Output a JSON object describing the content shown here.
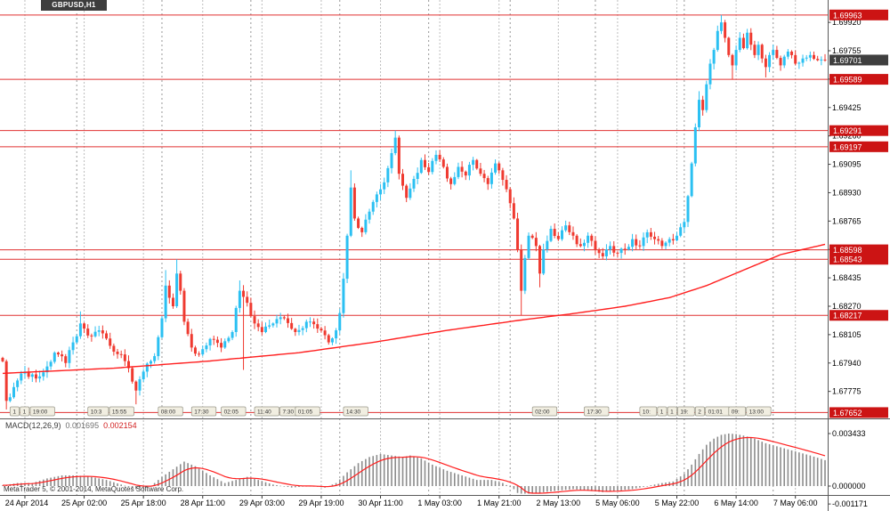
{
  "window": {
    "symbol_label": "GBPUSD,H1"
  },
  "indicator": {
    "label": "MACD(12,26,9)",
    "value_main": "0.001695",
    "value_signal": "0.002154"
  },
  "footer": {
    "copyright": "MetaTrader 5, © 2001-2014, MetaQuotes Software Corp."
  },
  "colors": {
    "bull": "#2bc0f2",
    "bear": "#ef3a30",
    "ma": "#ff1e1e",
    "level_line": "#e03030",
    "level_badge_bg": "#cc1414",
    "current_badge_bg": "#3f3f3f",
    "histogram": "#8c8c8c",
    "signal": "#ff1e1e",
    "grid": "#bdbdbd",
    "separator": "#5a5a5a",
    "axis_text": "#000000",
    "flag_bg": "#f1eee1",
    "flag_border": "#99988a"
  },
  "chart_data": [
    {
      "type": "candlestick",
      "title": "GBPUSD,H1",
      "symbol": "GBPUSD",
      "timeframe": "H1",
      "x_count": 223,
      "ylim": [
        1.67618,
        1.7005
      ],
      "current_price": {
        "label": "1.69701",
        "value": 1.69701
      },
      "price_ticks": [
        "1.69920",
        "1.69755",
        "1.69590",
        "1.69425",
        "1.69260",
        "1.69095",
        "1.68930",
        "1.68765",
        "1.68600",
        "1.68435",
        "1.68270",
        "1.68105",
        "1.67940",
        "1.67775"
      ],
      "levels": [
        {
          "label": "1.69963",
          "value": 1.69963
        },
        {
          "label": "1.69589",
          "value": 1.69589
        },
        {
          "label": "1.69291",
          "value": 1.69291
        },
        {
          "label": "1.69197",
          "value": 1.69197
        },
        {
          "label": "1.68598",
          "value": 1.68598
        },
        {
          "label": "1.68543",
          "value": 1.68543
        },
        {
          "label": "1.68217",
          "value": 1.68217
        },
        {
          "label": "1.67652",
          "value": 1.67652
        }
      ],
      "time_ticks": {
        "start_index": 6,
        "step": 16,
        "labels": [
          "24 Apr 2014",
          "25 Apr 02:00",
          "25 Apr 18:00",
          "28 Apr 11:00",
          "29 Apr 03:00",
          "29 Apr 19:00",
          "30 Apr 11:00",
          "1 May 03:00",
          "1 May 21:00",
          "2 May 13:00",
          "5 May 06:00",
          "5 May 22:00",
          "6 May 14:00",
          "7 May 06:00"
        ]
      },
      "day_separator_indices": [
        20,
        43,
        67,
        91,
        115,
        137,
        160,
        184,
        208
      ],
      "close_path": [
        [
          0,
          1.6795
        ],
        [
          1,
          1.6772
        ],
        [
          3,
          1.678
        ],
        [
          6,
          1.6789
        ],
        [
          9,
          1.6785
        ],
        [
          12,
          1.6792
        ],
        [
          14,
          1.68
        ],
        [
          17,
          1.6794
        ],
        [
          19,
          1.6806
        ],
        [
          21,
          1.6817
        ],
        [
          23,
          1.681
        ],
        [
          26,
          1.6813
        ],
        [
          29,
          1.6804
        ],
        [
          32,
          1.6799
        ],
        [
          34,
          1.6791
        ],
        [
          36,
          1.6778
        ],
        [
          38,
          1.6789
        ],
        [
          41,
          1.6798
        ],
        [
          43,
          1.682
        ],
        [
          44,
          1.6839
        ],
        [
          46,
          1.6827
        ],
        [
          47,
          1.6846
        ],
        [
          48,
          1.6836
        ],
        [
          49,
          1.6818
        ],
        [
          51,
          1.6803
        ],
        [
          53,
          1.6799
        ],
        [
          56,
          1.6808
        ],
        [
          59,
          1.6803
        ],
        [
          62,
          1.6812
        ],
        [
          63,
          1.6826
        ],
        [
          64,
          1.6836
        ],
        [
          66,
          1.6829
        ],
        [
          68,
          1.6817
        ],
        [
          70,
          1.6812
        ],
        [
          73,
          1.6817
        ],
        [
          76,
          1.682
        ],
        [
          79,
          1.6812
        ],
        [
          82,
          1.6818
        ],
        [
          85,
          1.6814
        ],
        [
          88,
          1.6806
        ],
        [
          90,
          1.6813
        ],
        [
          91,
          1.6823
        ],
        [
          92,
          1.6843
        ],
        [
          93,
          1.6868
        ],
        [
          94,
          1.6896
        ],
        [
          95,
          1.6878
        ],
        [
          97,
          1.687
        ],
        [
          99,
          1.6882
        ],
        [
          101,
          1.6892
        ],
        [
          103,
          1.6899
        ],
        [
          105,
          1.6916
        ],
        [
          106,
          1.6925
        ],
        [
          107,
          1.6904
        ],
        [
          109,
          1.689
        ],
        [
          111,
          1.6901
        ],
        [
          113,
          1.6912
        ],
        [
          115,
          1.6905
        ],
        [
          117,
          1.6915
        ],
        [
          119,
          1.6908
        ],
        [
          121,
          1.6898
        ],
        [
          123,
          1.6908
        ],
        [
          125,
          1.6903
        ],
        [
          127,
          1.6912
        ],
        [
          129,
          1.6904
        ],
        [
          131,
          1.6898
        ],
        [
          133,
          1.691
        ],
        [
          134,
          1.6906
        ],
        [
          136,
          1.6895
        ],
        [
          138,
          1.6878
        ],
        [
          139,
          1.686
        ],
        [
          140,
          1.6836
        ],
        [
          141,
          1.6855
        ],
        [
          142,
          1.6868
        ],
        [
          144,
          1.6862
        ],
        [
          145,
          1.6846
        ],
        [
          146,
          1.686
        ],
        [
          148,
          1.6872
        ],
        [
          150,
          1.6866
        ],
        [
          152,
          1.6874
        ],
        [
          154,
          1.6868
        ],
        [
          156,
          1.6862
        ],
        [
          158,
          1.6868
        ],
        [
          160,
          1.686
        ],
        [
          162,
          1.6856
        ],
        [
          164,
          1.6862
        ],
        [
          166,
          1.6858
        ],
        [
          168,
          1.686
        ],
        [
          170,
          1.6866
        ],
        [
          172,
          1.6862
        ],
        [
          174,
          1.687
        ],
        [
          176,
          1.6866
        ],
        [
          178,
          1.6862
        ],
        [
          180,
          1.6866
        ],
        [
          182,
          1.6868
        ],
        [
          184,
          1.6876
        ],
        [
          185,
          1.6891
        ],
        [
          186,
          1.691
        ],
        [
          187,
          1.6931
        ],
        [
          188,
          1.6947
        ],
        [
          189,
          1.6941
        ],
        [
          190,
          1.6956
        ],
        [
          191,
          1.6968
        ],
        [
          192,
          1.6976
        ],
        [
          193,
          1.6987
        ],
        [
          194,
          1.6992
        ],
        [
          195,
          1.6983
        ],
        [
          196,
          1.6973
        ],
        [
          197,
          1.6967
        ],
        [
          198,
          1.6976
        ],
        [
          199,
          1.6983
        ],
        [
          200,
          1.6977
        ],
        [
          201,
          1.6986
        ],
        [
          202,
          1.6979
        ],
        [
          203,
          1.6973
        ],
        [
          204,
          1.6979
        ],
        [
          205,
          1.6971
        ],
        [
          206,
          1.6966
        ],
        [
          207,
          1.6973
        ],
        [
          208,
          1.6976
        ],
        [
          210,
          1.6967
        ],
        [
          212,
          1.6975
        ],
        [
          214,
          1.6968
        ],
        [
          216,
          1.6971
        ],
        [
          218,
          1.6973
        ],
        [
          220,
          1.697
        ],
        [
          222,
          1.69701
        ]
      ],
      "wick_extremes": {
        "1": {
          "low": 1.6767
        },
        "21": {
          "high": 1.6824
        },
        "36": {
          "low": 1.677
        },
        "44": {
          "high": 1.6848
        },
        "47": {
          "high": 1.68543
        },
        "64": {
          "high": 1.6842
        },
        "65": {
          "low": 1.679
        },
        "94": {
          "high": 1.6906
        },
        "106": {
          "high": 1.69291
        },
        "140": {
          "low": 1.68217
        },
        "145": {
          "low": 1.6838
        },
        "188": {
          "high": 1.6952
        },
        "194": {
          "high": 1.69963
        },
        "197": {
          "low": 1.69589
        },
        "206": {
          "low": 1.696
        }
      },
      "ma_path": [
        [
          0,
          1.6788
        ],
        [
          30,
          1.6791
        ],
        [
          55,
          1.6795
        ],
        [
          80,
          1.68
        ],
        [
          100,
          1.6806
        ],
        [
          120,
          1.6813
        ],
        [
          140,
          1.6819
        ],
        [
          155,
          1.6823
        ],
        [
          168,
          1.6827
        ],
        [
          180,
          1.6832
        ],
        [
          190,
          1.6839
        ],
        [
          200,
          1.6848
        ],
        [
          210,
          1.6857
        ],
        [
          222,
          1.6863
        ]
      ],
      "event_flags": [
        {
          "i": 2,
          "labels": [
            "1",
            "1",
            "19:00"
          ]
        },
        {
          "i": 23,
          "labels": [
            "10:3",
            "15:55"
          ]
        },
        {
          "i": 42,
          "labels": [
            "08:00"
          ]
        },
        {
          "i": 51,
          "labels": [
            "17:30"
          ]
        },
        {
          "i": 59,
          "labels": [
            "02:05"
          ]
        },
        {
          "i": 68,
          "labels": [
            "11:40",
            "7:30"
          ]
        },
        {
          "i": 79,
          "labels": [
            "01:05"
          ]
        },
        {
          "i": 92,
          "labels": [
            "14:30"
          ]
        },
        {
          "i": 143,
          "labels": [
            "02:00"
          ]
        },
        {
          "i": 157,
          "labels": [
            "17:30"
          ]
        },
        {
          "i": 172,
          "labels": [
            "10:",
            "1",
            "1",
            "19:",
            "2",
            "01:01"
          ]
        },
        {
          "i": 196,
          "labels": [
            "09:",
            "13:00"
          ]
        }
      ]
    },
    {
      "type": "bar",
      "title": "MACD(12,26,9)",
      "signal_rule": "EMA9 of MACD line",
      "axis_labels": [
        {
          "label": "0.003433",
          "value": 0.003433
        },
        {
          "label": "0.000000",
          "value": 0.0
        },
        {
          "label": "-0.001171",
          "value": -0.001171
        }
      ],
      "current": {
        "macd": 0.001695,
        "signal": 0.002154
      },
      "values_path": [
        [
          0,
          5e-05
        ],
        [
          4,
          0.0002
        ],
        [
          8,
          0.0002
        ],
        [
          12,
          0.0005
        ],
        [
          16,
          0.0007
        ],
        [
          20,
          0.0007
        ],
        [
          24,
          0.0006
        ],
        [
          28,
          0.0004
        ],
        [
          32,
          0.0001
        ],
        [
          36,
          -0.0002
        ],
        [
          40,
          0.0
        ],
        [
          43,
          0.0006
        ],
        [
          46,
          0.0011
        ],
        [
          49,
          0.0016
        ],
        [
          52,
          0.0013
        ],
        [
          56,
          0.0007
        ],
        [
          60,
          0.0002
        ],
        [
          63,
          0.0004
        ],
        [
          66,
          0.0006
        ],
        [
          69,
          0.0004
        ],
        [
          73,
          0.0001
        ],
        [
          78,
          -0.0001
        ],
        [
          83,
          0.0
        ],
        [
          87,
          -0.0001
        ],
        [
          90,
          0.0002
        ],
        [
          93,
          0.0009
        ],
        [
          96,
          0.0015
        ],
        [
          99,
          0.0019
        ],
        [
          102,
          0.0021
        ],
        [
          105,
          0.002
        ],
        [
          108,
          0.0019
        ],
        [
          110,
          0.002
        ],
        [
          113,
          0.0018
        ],
        [
          116,
          0.0014
        ],
        [
          120,
          0.001
        ],
        [
          124,
          0.0007
        ],
        [
          128,
          0.0004
        ],
        [
          132,
          0.0004
        ],
        [
          135,
          0.0002
        ],
        [
          138,
          -0.0002
        ],
        [
          140,
          -0.0007
        ],
        [
          141,
          -0.001171
        ],
        [
          143,
          -0.0006
        ],
        [
          146,
          -0.0004
        ],
        [
          150,
          -0.0003
        ],
        [
          154,
          -0.0002
        ],
        [
          158,
          -0.0003
        ],
        [
          162,
          -0.0004
        ],
        [
          166,
          -0.0003
        ],
        [
          170,
          -0.0002
        ],
        [
          174,
          0.0
        ],
        [
          178,
          0.0002
        ],
        [
          181,
          0.0003
        ],
        [
          184,
          0.0008
        ],
        [
          186,
          0.0014
        ],
        [
          188,
          0.0021
        ],
        [
          190,
          0.0027
        ],
        [
          192,
          0.0031
        ],
        [
          194,
          0.00335
        ],
        [
          196,
          0.003433
        ],
        [
          198,
          0.0034
        ],
        [
          200,
          0.0033
        ],
        [
          203,
          0.0031
        ],
        [
          206,
          0.0028
        ],
        [
          209,
          0.0026
        ],
        [
          212,
          0.0024
        ],
        [
          215,
          0.0022
        ],
        [
          218,
          0.002
        ],
        [
          220,
          0.00185
        ],
        [
          222,
          0.001695
        ]
      ]
    }
  ]
}
